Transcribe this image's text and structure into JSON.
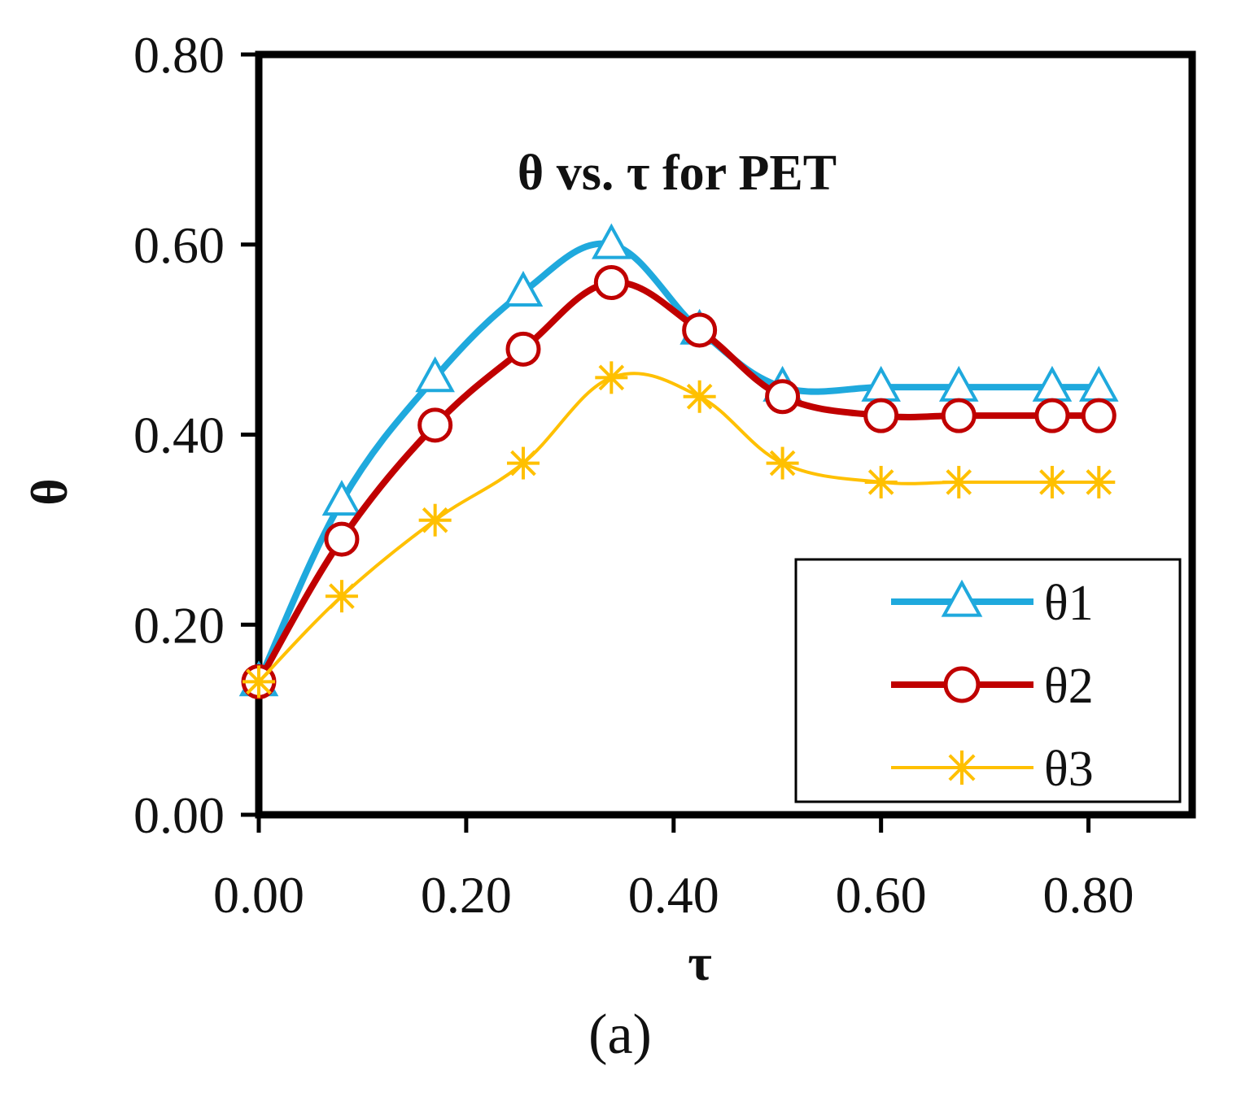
{
  "chart_data": {
    "type": "line",
    "title": "θ vs. τ for PET",
    "xlabel": "τ",
    "ylabel": "θ",
    "caption": "(a)",
    "xlim": [
      0.0,
      0.9
    ],
    "ylim": [
      0.0,
      0.8
    ],
    "xticks": [
      "0.00",
      "0.20",
      "0.40",
      "0.60",
      "0.80"
    ],
    "yticks": [
      "0.00",
      "0.20",
      "0.40",
      "0.60",
      "0.80"
    ],
    "xtick_values": [
      0.0,
      0.2,
      0.4,
      0.6,
      0.8
    ],
    "ytick_values": [
      0.0,
      0.2,
      0.4,
      0.6,
      0.8
    ],
    "grid": false,
    "legend_position": "bottom-right",
    "x": [
      0.0,
      0.08,
      0.17,
      0.255,
      0.34,
      0.425,
      0.505,
      0.6,
      0.675,
      0.765,
      0.81
    ],
    "series": [
      {
        "name": "θ1",
        "color": "#1FA9DD",
        "marker": "triangle",
        "values": [
          0.14,
          0.33,
          0.46,
          0.55,
          0.6,
          0.51,
          0.45,
          0.45,
          0.45,
          0.45,
          0.45
        ]
      },
      {
        "name": "θ2",
        "color": "#C00000",
        "marker": "circle",
        "values": [
          0.14,
          0.29,
          0.41,
          0.49,
          0.56,
          0.51,
          0.44,
          0.42,
          0.42,
          0.42,
          0.42
        ]
      },
      {
        "name": "θ3",
        "color": "#FFC000",
        "marker": "asterisk",
        "values": [
          0.14,
          0.23,
          0.31,
          0.37,
          0.46,
          0.44,
          0.37,
          0.35,
          0.35,
          0.35,
          0.35
        ]
      }
    ]
  }
}
